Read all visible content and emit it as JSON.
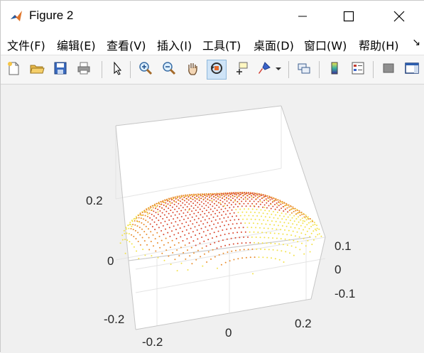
{
  "window": {
    "title": "Figure 2",
    "app_icon": "matlab-icon",
    "controls": [
      "minimize-icon",
      "maximize-icon",
      "close-icon"
    ]
  },
  "menu": [
    {
      "label": "文件(F)"
    },
    {
      "label": "编辑(E)"
    },
    {
      "label": "查看(V)"
    },
    {
      "label": "插入(I)"
    },
    {
      "label": "工具(T)"
    },
    {
      "label": "桌面(D)"
    },
    {
      "label": "窗口(W)"
    },
    {
      "label": "帮助(H)"
    }
  ],
  "menu_overflow": "↘",
  "toolbar": {
    "buttons": [
      "new-figure-icon",
      "open-file-icon",
      "save-icon",
      "print-icon",
      "pointer-icon",
      "zoom-in-icon",
      "zoom-out-icon",
      "pan-hand-icon",
      "rotate-3d-icon",
      "data-cursor-icon",
      "brush-icon",
      "brush-dropdown-icon",
      "link-plot-icon",
      "colorbar-icon",
      "legend-icon",
      "hide-plot-tools-icon",
      "show-plot-tools-icon"
    ],
    "active": "rotate-3d-icon"
  },
  "chart_data": {
    "type": "scatter",
    "projection": "3d",
    "title": "",
    "xlabel": "",
    "ylabel": "",
    "zlabel": "",
    "x_ticks": [
      "-0.2",
      "0",
      "0.2"
    ],
    "y_ticks": [
      "-0.1",
      "0",
      "0.1"
    ],
    "z_ticks": [
      "-0.2",
      "0",
      "0.2"
    ],
    "xlim": [
      -0.25,
      0.25
    ],
    "ylim": [
      -0.15,
      0.15
    ],
    "zlim": [
      -0.25,
      0.3
    ],
    "grid": true,
    "marker": "dot",
    "colors": {
      "high": "#d9482f",
      "mid": "#e98d2e",
      "low": "#f3e24a",
      "axes": "#ffffff",
      "grid": "#e2e2e2",
      "box": "#c2c2c2"
    },
    "description_shape": "ellipsoidal cloud of rows of dots; color by height (yellow at bottom, red at top)"
  }
}
